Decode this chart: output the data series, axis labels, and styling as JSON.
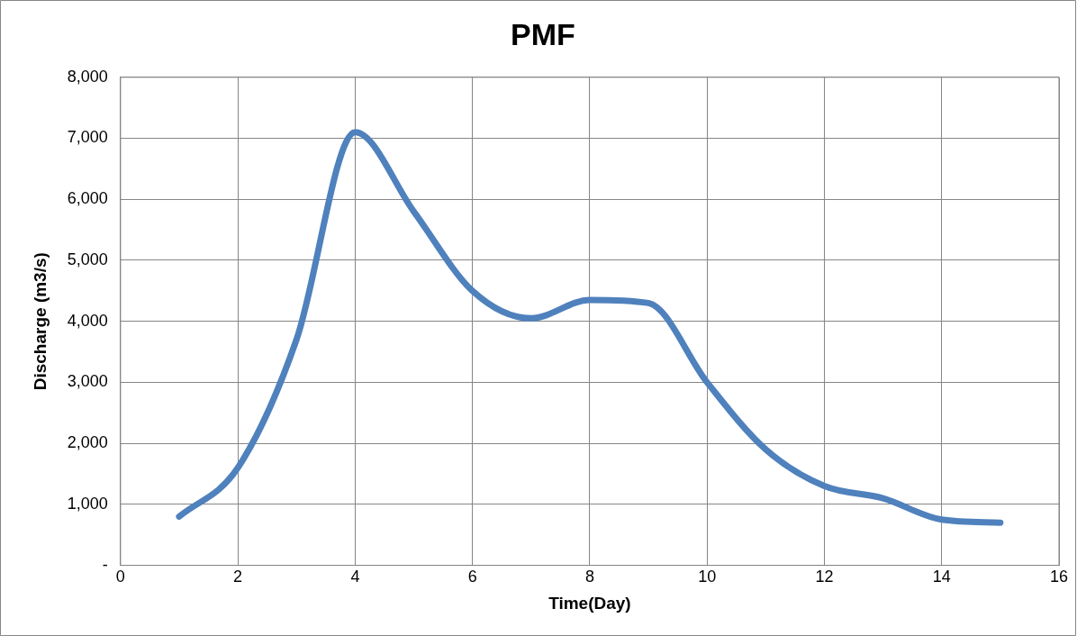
{
  "chart_data": {
    "type": "line",
    "title": "PMF",
    "xlabel": "Time(Day)",
    "ylabel": "Discharge (m3/s)",
    "x": [
      1,
      2,
      3,
      4,
      5,
      6,
      7,
      8,
      9,
      10,
      11,
      12,
      13,
      14,
      15
    ],
    "series": [
      {
        "color": "#4f81bd",
        "values": [
          800,
          1600,
          3700,
          7100,
          5800,
          4500,
          4050,
          4350,
          4300,
          3000,
          1900,
          1300,
          1100,
          750,
          700
        ]
      }
    ],
    "xlim": [
      0,
      16
    ],
    "xticks": [
      0,
      2,
      4,
      6,
      8,
      10,
      12,
      14,
      16
    ],
    "ylim": [
      0,
      8000
    ],
    "yticks": [
      {
        "value": 0,
        "label": "-"
      },
      {
        "value": 1000,
        "label": "1,000"
      },
      {
        "value": 2000,
        "label": "2,000"
      },
      {
        "value": 3000,
        "label": "3,000"
      },
      {
        "value": 4000,
        "label": "4,000"
      },
      {
        "value": 5000,
        "label": "5,000"
      },
      {
        "value": 6000,
        "label": "6,000"
      },
      {
        "value": 7000,
        "label": "7,000"
      },
      {
        "value": 8000,
        "label": "8,000"
      }
    ],
    "grid": true,
    "legend": false,
    "marker": "none",
    "line_style": "solid"
  }
}
